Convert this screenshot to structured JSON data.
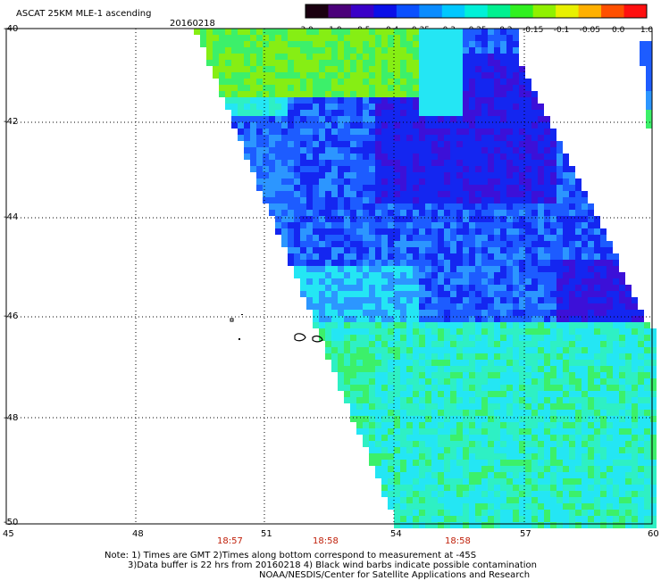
{
  "header": {
    "title": "ASCAT 25KM MLE-1 ascending",
    "date": "20160218"
  },
  "colorbar": {
    "labels": [
      "-3.0",
      "-1.0",
      "-0.5",
      "-0.4",
      "-0.35",
      "-0.3",
      "-0.25",
      "-0.2",
      "-0.15",
      "-0.1",
      "-0.05",
      "0.0",
      "1.0"
    ],
    "colors": [
      "#1a0010",
      "#4b007a",
      "#3a00c8",
      "#0a10e8",
      "#0a50ff",
      "#0a8cff",
      "#00c8ff",
      "#00f0d8",
      "#00f090",
      "#30f020",
      "#90f000",
      "#e8f000",
      "#ffb000",
      "#ff5000",
      "#ff1010"
    ]
  },
  "map": {
    "lat_labels": [
      "-40",
      "-42",
      "-44",
      "-46",
      "-48",
      "-50"
    ],
    "lon_labels": [
      "45",
      "48",
      "51",
      "54",
      "57",
      "60"
    ],
    "time_labels": [
      "18:57",
      "18:58",
      "18:58"
    ],
    "swath_colors": {
      "deep": "#3c10d8",
      "dark": "#1426f0",
      "mid": "#1d5cff",
      "light": "#2c96ff",
      "cyan": "#24e6f4",
      "aqua": "#2ef0c4",
      "green": "#3cf06a",
      "lime": "#86ee14"
    }
  },
  "notes": {
    "line1": "Note: 1) Times are GMT 2)Times along bottom correspond to measurement at -45S",
    "line2": "3)Data buffer is 22 hrs from 20160218 4) Black wind barbs indicate possible contamination",
    "line3": "NOAA/NESDIS/Center for Satellite Applications and Research"
  }
}
